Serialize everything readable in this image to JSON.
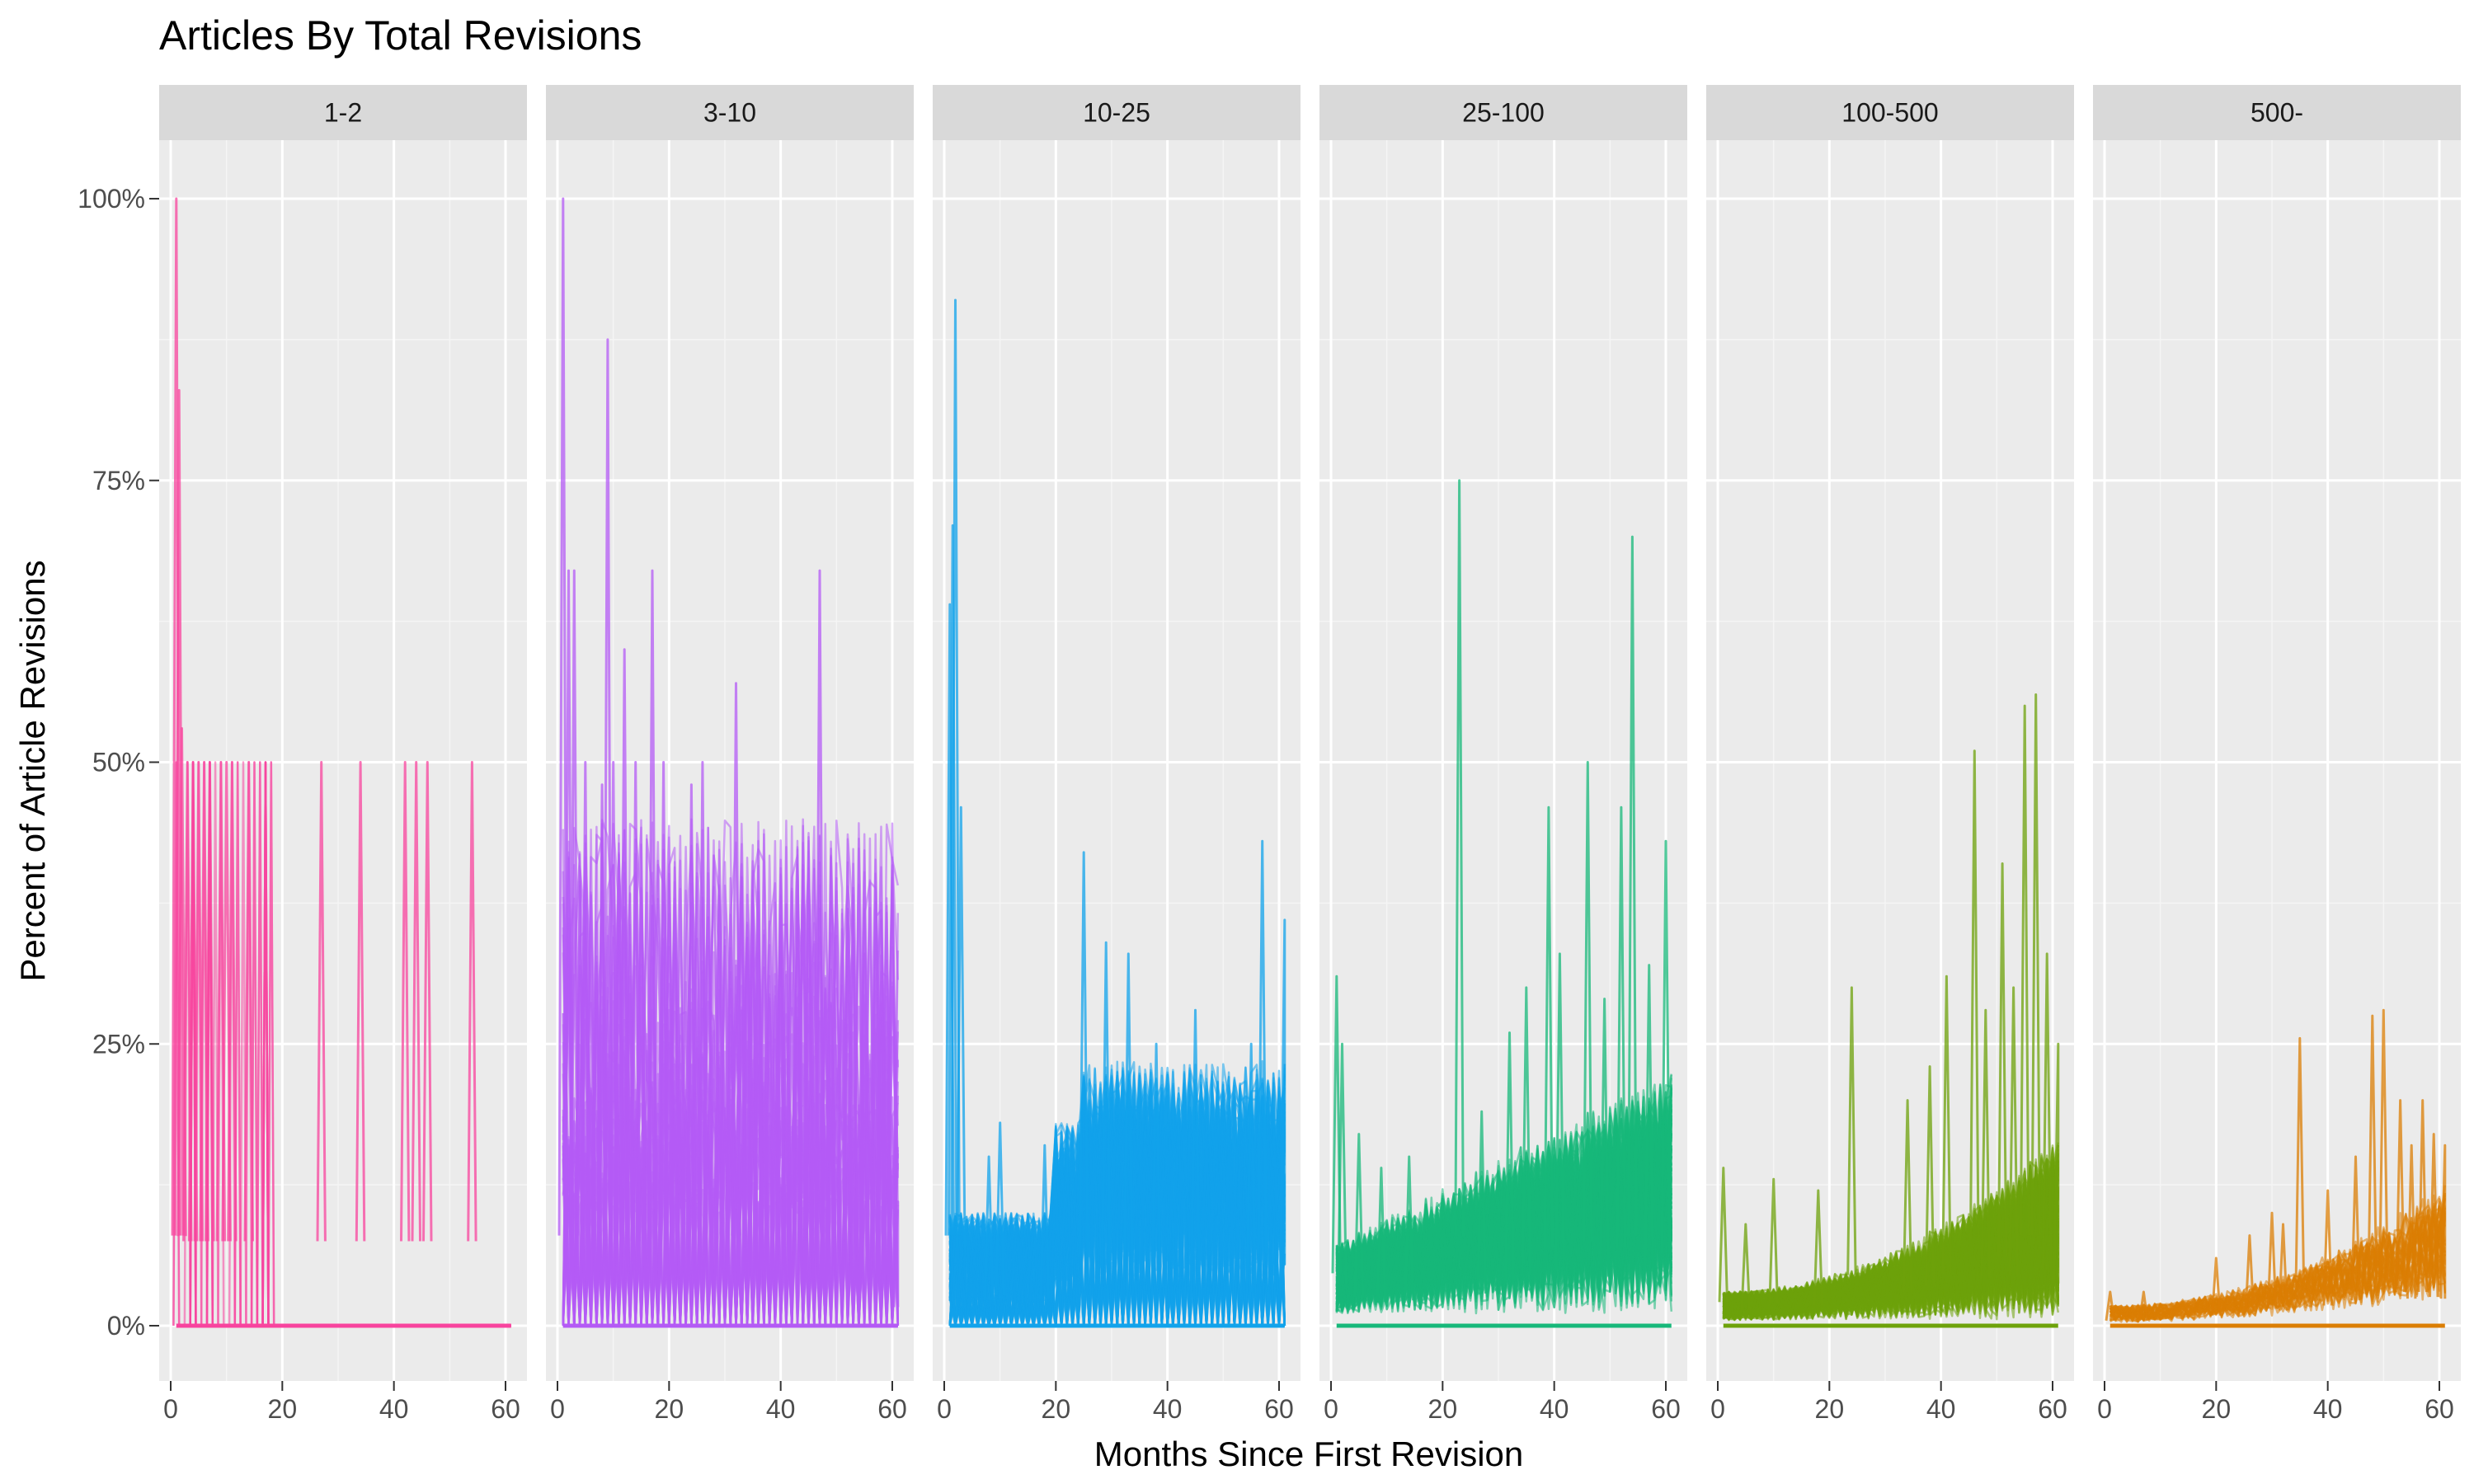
{
  "chart_data": {
    "type": "line",
    "title": "Articles By Total Revisions",
    "xlabel": "Months Since First Revision",
    "ylabel": "Percent of Article Revisions",
    "xlim": [
      0,
      61
    ],
    "ylim": [
      0,
      100
    ],
    "x_ticks": [
      0,
      20,
      40,
      60
    ],
    "y_ticks": [
      0,
      25,
      50,
      75,
      100
    ],
    "y_tick_labels": [
      "0%",
      "25%",
      "50%",
      "75%",
      "100%"
    ],
    "grid": true,
    "legend": "none",
    "facets": [
      {
        "label": "1-2",
        "color": "#F8449E",
        "series_count": 30,
        "peaks": [
          {
            "x": 1,
            "y": 100
          },
          {
            "x": 1.5,
            "y": 83
          },
          {
            "x": 2,
            "y": 53
          },
          {
            "x": 3,
            "y": 50
          },
          {
            "x": 4,
            "y": 50
          },
          {
            "x": 5,
            "y": 50
          },
          {
            "x": 6,
            "y": 50
          },
          {
            "x": 7,
            "y": 50
          },
          {
            "x": 9,
            "y": 50
          },
          {
            "x": 10,
            "y": 50
          },
          {
            "x": 11,
            "y": 50
          },
          {
            "x": 14,
            "y": 50
          },
          {
            "x": 27,
            "y": 50
          },
          {
            "x": 34,
            "y": 50
          },
          {
            "x": 42,
            "y": 50
          },
          {
            "x": 44,
            "y": 50
          },
          {
            "x": 46,
            "y": 50
          },
          {
            "x": 54,
            "y": 50
          }
        ]
      },
      {
        "label": "3-10",
        "color": "#B45BF5",
        "series_count": 60,
        "peaks": [
          {
            "x": 1,
            "y": 100
          },
          {
            "x": 2,
            "y": 67
          },
          {
            "x": 3,
            "y": 67
          },
          {
            "x": 5,
            "y": 50
          },
          {
            "x": 8,
            "y": 48
          },
          {
            "x": 9,
            "y": 87.5
          },
          {
            "x": 10,
            "y": 50
          },
          {
            "x": 12,
            "y": 60
          },
          {
            "x": 14,
            "y": 50
          },
          {
            "x": 17,
            "y": 67
          },
          {
            "x": 19,
            "y": 50
          },
          {
            "x": 24,
            "y": 48
          },
          {
            "x": 26,
            "y": 50
          },
          {
            "x": 32,
            "y": 57
          },
          {
            "x": 34,
            "y": 33
          },
          {
            "x": 36,
            "y": 33
          },
          {
            "x": 40,
            "y": 33
          },
          {
            "x": 47,
            "y": 67
          },
          {
            "x": 55,
            "y": 33
          },
          {
            "x": 58,
            "y": 25
          },
          {
            "x": 61,
            "y": 11
          }
        ]
      },
      {
        "label": "10-25",
        "color": "#12A3EB",
        "series_count": 120,
        "peaks": [
          {
            "x": 1,
            "y": 64
          },
          {
            "x": 1.5,
            "y": 71
          },
          {
            "x": 2,
            "y": 91
          },
          {
            "x": 3,
            "y": 46
          },
          {
            "x": 8,
            "y": 15
          },
          {
            "x": 10,
            "y": 18
          },
          {
            "x": 18,
            "y": 16
          },
          {
            "x": 25,
            "y": 42
          },
          {
            "x": 29,
            "y": 34
          },
          {
            "x": 33,
            "y": 33
          },
          {
            "x": 38,
            "y": 25
          },
          {
            "x": 45,
            "y": 28
          },
          {
            "x": 55,
            "y": 25
          },
          {
            "x": 57,
            "y": 43
          },
          {
            "x": 61,
            "y": 36
          }
        ]
      },
      {
        "label": "25-100",
        "color": "#17B87A",
        "series_count": 180,
        "peaks": [
          {
            "x": 1,
            "y": 31
          },
          {
            "x": 2,
            "y": 25
          },
          {
            "x": 5,
            "y": 17
          },
          {
            "x": 9,
            "y": 14
          },
          {
            "x": 14,
            "y": 15
          },
          {
            "x": 23,
            "y": 75
          },
          {
            "x": 27,
            "y": 19
          },
          {
            "x": 32,
            "y": 26
          },
          {
            "x": 35,
            "y": 30
          },
          {
            "x": 39,
            "y": 46
          },
          {
            "x": 41,
            "y": 33
          },
          {
            "x": 46,
            "y": 50
          },
          {
            "x": 49,
            "y": 29
          },
          {
            "x": 52,
            "y": 46
          },
          {
            "x": 54,
            "y": 70
          },
          {
            "x": 57,
            "y": 32
          },
          {
            "x": 60,
            "y": 43
          }
        ]
      },
      {
        "label": "100-500",
        "color": "#6EA20B",
        "series_count": 180,
        "peaks": [
          {
            "x": 1,
            "y": 14
          },
          {
            "x": 5,
            "y": 9
          },
          {
            "x": 10,
            "y": 13
          },
          {
            "x": 18,
            "y": 12
          },
          {
            "x": 24,
            "y": 30
          },
          {
            "x": 34,
            "y": 20
          },
          {
            "x": 38,
            "y": 23
          },
          {
            "x": 41,
            "y": 31
          },
          {
            "x": 46,
            "y": 51
          },
          {
            "x": 48,
            "y": 28
          },
          {
            "x": 51,
            "y": 41
          },
          {
            "x": 53,
            "y": 30
          },
          {
            "x": 55,
            "y": 55
          },
          {
            "x": 57,
            "y": 56
          },
          {
            "x": 59,
            "y": 33
          },
          {
            "x": 61,
            "y": 25
          }
        ]
      },
      {
        "label": "500-",
        "color": "#DB7E04",
        "series_count": 40,
        "peaks": [
          {
            "x": 1,
            "y": 3
          },
          {
            "x": 7,
            "y": 3
          },
          {
            "x": 20,
            "y": 6
          },
          {
            "x": 26,
            "y": 8
          },
          {
            "x": 30,
            "y": 10
          },
          {
            "x": 32,
            "y": 9
          },
          {
            "x": 35,
            "y": 25.5
          },
          {
            "x": 40,
            "y": 12
          },
          {
            "x": 45,
            "y": 15
          },
          {
            "x": 48,
            "y": 27.5
          },
          {
            "x": 50,
            "y": 28
          },
          {
            "x": 53,
            "y": 20
          },
          {
            "x": 55,
            "y": 16
          },
          {
            "x": 57,
            "y": 20
          },
          {
            "x": 59,
            "y": 17
          },
          {
            "x": 61,
            "y": 16
          }
        ]
      }
    ]
  }
}
